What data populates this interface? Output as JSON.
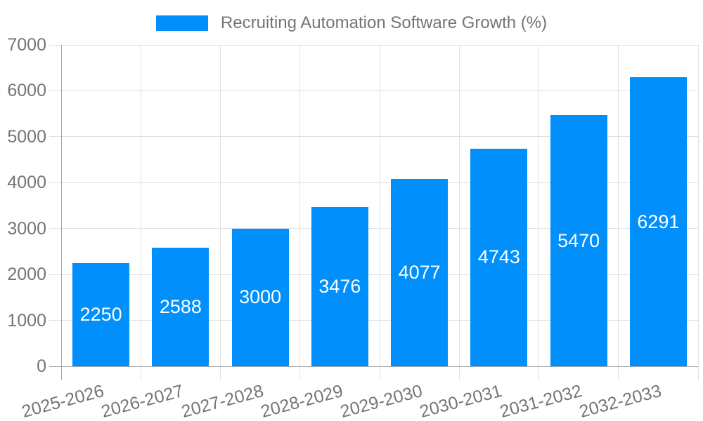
{
  "legend": {
    "label": "Recruiting Automation Software Growth (%)"
  },
  "colors": {
    "bar": "#008FFB",
    "label_gray": "#757575",
    "grid": "#e0e0e0",
    "axis_line": "#a6a6a6",
    "value_label": "#ffffff",
    "background": "#ffffff"
  },
  "chart_data": {
    "type": "bar",
    "title": "Recruiting Automation Software Growth (%)",
    "legend_entries": [
      "Recruiting Automation Software Growth (%)"
    ],
    "legend_position": "top-center",
    "categories": [
      "2025-2026",
      "2026-2027",
      "2027-2028",
      "2028-2029",
      "2029-2030",
      "2030-2031",
      "2031-2032",
      "2032-2033"
    ],
    "values": [
      2250,
      2588,
      3000,
      3476,
      4077,
      4743,
      5470,
      6291
    ],
    "bar_value_labels": [
      "2250",
      "2588",
      "3000",
      "3476",
      "4077",
      "4743",
      "5470",
      "6291"
    ],
    "xlabel": "",
    "ylabel": "",
    "ylim": [
      0,
      7000
    ],
    "yticks": [
      0,
      1000,
      2000,
      3000,
      4000,
      5000,
      6000,
      7000
    ],
    "grid": true,
    "x_tick_rotation_deg": -15
  }
}
